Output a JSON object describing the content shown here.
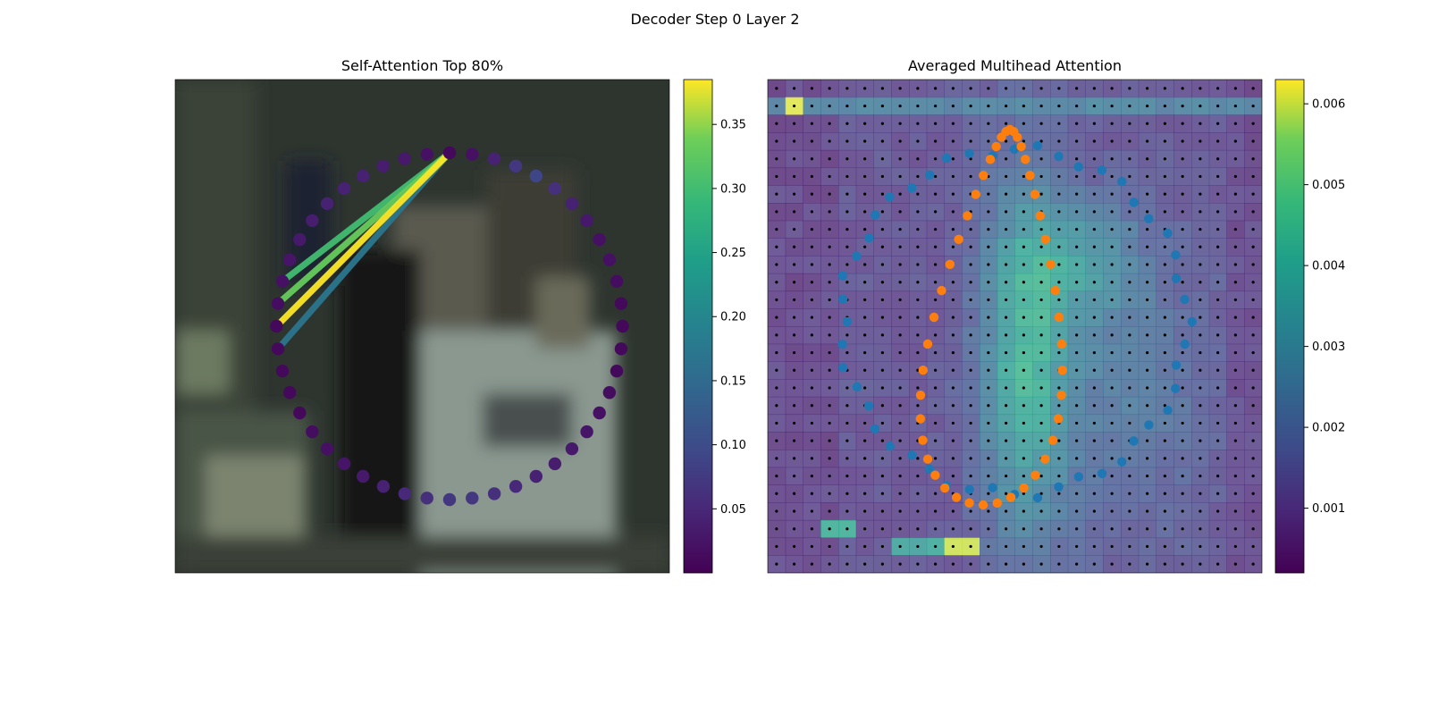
{
  "suptitle": "Decoder Step 0 Layer 2",
  "chart_data": [
    {
      "type": "heatmap",
      "title": "Self-Attention Top 80%",
      "description_of_marks": "circle of 48 contour points over a blurred photo background; points colored by self-attention weight; top attention links drawn as lines",
      "colormap": "viridis",
      "colorbar": {
        "min": 0.0,
        "max": 0.385,
        "ticks": [
          0.05,
          0.1,
          0.15,
          0.2,
          0.25,
          0.3,
          0.35
        ],
        "tick_labels": [
          "0.05",
          "0.10",
          "0.15",
          "0.20",
          "0.25",
          "0.30",
          "0.35"
        ]
      },
      "points": {
        "count": 48,
        "weights": [
          0.01,
          0.02,
          0.04,
          0.07,
          0.09,
          0.06,
          0.04,
          0.03,
          0.02,
          0.02,
          0.015,
          0.01,
          0.01,
          0.01,
          0.01,
          0.015,
          0.02,
          0.025,
          0.03,
          0.035,
          0.04,
          0.05,
          0.06,
          0.07,
          0.07,
          0.06,
          0.05,
          0.04,
          0.03,
          0.025,
          0.02,
          0.015,
          0.01,
          0.01,
          0.01,
          0.01,
          0.01,
          0.015,
          0.02,
          0.025,
          0.03,
          0.035,
          0.04,
          0.04,
          0.04,
          0.035,
          0.03,
          0.02
        ]
      },
      "links": [
        {
          "from": 36,
          "to": 0,
          "weight": 0.385
        },
        {
          "from": 37,
          "to": 0,
          "weight": 0.33
        },
        {
          "from": 35,
          "to": 0,
          "weight": 0.17
        },
        {
          "from": 38,
          "to": 0,
          "weight": 0.3
        }
      ]
    },
    {
      "type": "heatmap",
      "title": "Averaged Multihead Attention",
      "colormap": "viridis",
      "grid_size": 28,
      "colorbar": {
        "min": 0.0002,
        "max": 0.0063,
        "ticks": [
          0.001,
          0.002,
          0.003,
          0.004,
          0.005,
          0.006
        ],
        "tick_labels": [
          "0.001",
          "0.002",
          "0.003",
          "0.004",
          "0.005",
          "0.006"
        ]
      },
      "series": [
        {
          "color": "#1f77b4",
          "description": "outer contour points (blue)"
        },
        {
          "color": "#ff7f0e",
          "description": "predicted contour points (orange)"
        }
      ]
    }
  ],
  "colors": {
    "viridis_low": "#440154",
    "viridis_high": "#fde725",
    "blue_series": "#1f77b4",
    "orange_series": "#ff7f0e"
  }
}
